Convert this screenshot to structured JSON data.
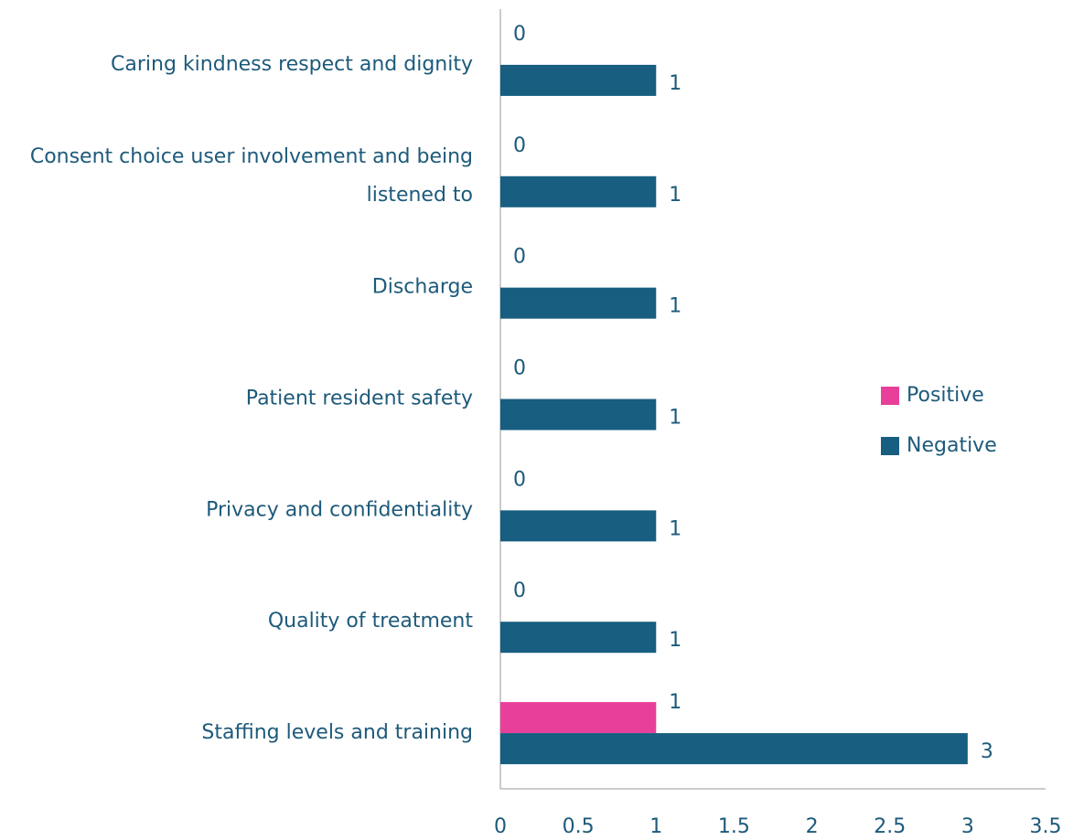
{
  "chart_data": {
    "type": "bar",
    "orientation": "horizontal",
    "categories": [
      "Caring kindness respect and dignity",
      "Consent choice user involvement and being listened to",
      "Discharge",
      "Patient resident safety",
      "Privacy and confidentiality",
      "Quality of treatment",
      "Staffing levels and training"
    ],
    "series": [
      {
        "name": "Positive",
        "color": "#e8409a",
        "values": [
          0,
          0,
          0,
          0,
          0,
          0,
          1
        ]
      },
      {
        "name": "Negative",
        "color": "#175e80",
        "values": [
          1,
          1,
          1,
          1,
          1,
          1,
          3
        ]
      }
    ],
    "xlim": [
      0,
      3.5
    ],
    "xticks": [
      0,
      0.5,
      1,
      1.5,
      2,
      2.5,
      3,
      3.5
    ],
    "grid": false,
    "legend": "right",
    "data_labels": true
  }
}
